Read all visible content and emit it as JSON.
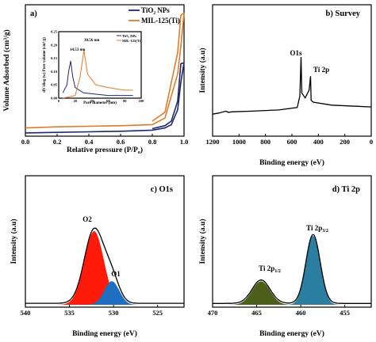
{
  "colors": {
    "tio2": "#1c2a6b",
    "mil": "#e07b2a",
    "o2": "#ff1a0a",
    "o1": "#1e6fc2",
    "ti12": "#4b5e1a",
    "ti32": "#2a7fa0"
  },
  "chart_data": [
    {
      "panel": "a)",
      "type": "line",
      "xlabel": "Relative pressure (P/P",
      "xlabel_sub": "o",
      "xlabel_end": ")",
      "ylabel": "Volume Adsorbed (cm³/g)",
      "xlim": [
        0,
        1.0
      ],
      "xticks": [
        "0.0",
        "0.2",
        "0.4",
        "0.6",
        "0.8",
        "1.0"
      ],
      "legend": [
        "TiO₂ NPs",
        "MIL-125(Ti)"
      ],
      "legend_position": "top-right",
      "series": [
        {
          "name": "TiO₂ NPs",
          "x": [
            0.0,
            0.2,
            0.4,
            0.6,
            0.8,
            0.88,
            0.92,
            0.96,
            0.98,
            1.0
          ],
          "y": [
            3,
            4,
            5,
            6,
            8,
            12,
            18,
            45,
            95,
            130
          ]
        },
        {
          "name": "MIL-125(Ti)",
          "x": [
            0.0,
            0.2,
            0.4,
            0.6,
            0.8,
            0.88,
            0.92,
            0.96,
            0.98,
            1.0
          ],
          "y": [
            12,
            14,
            15,
            16,
            18,
            30,
            70,
            110,
            160,
            220
          ]
        }
      ],
      "inset": {
        "type": "line",
        "xlabel": "Pore diameter (nm)",
        "ylabel": "dV/dlog (w) Pore volume (cm³/g)",
        "xticks": [
          "0",
          "20",
          "40",
          "60",
          "80",
          "100"
        ],
        "yticks": [
          "0.00",
          "0.05",
          "0.10",
          "0.15",
          "0.20",
          "0.25"
        ],
        "legend": [
          "TiO₂ NPs",
          "MIL-125(Ti)"
        ],
        "annotations": [
          "14.53 nm",
          "30.56 nm"
        ],
        "series": [
          {
            "name": "TiO₂ NPs",
            "x": [
              5,
              10,
              12,
              14.53,
              17,
              20,
              30,
              60,
              90
            ],
            "y": [
              0.02,
              0.05,
              0.1,
              0.14,
              0.08,
              0.04,
              0.02,
              0.01,
              0.01
            ]
          },
          {
            "name": "MIL-125(Ti)",
            "x": [
              5,
              20,
              26,
              30.56,
              35,
              45,
              60,
              80,
              90
            ],
            "y": [
              0.0,
              0.01,
              0.08,
              0.18,
              0.09,
              0.05,
              0.04,
              0.03,
              0.03
            ]
          }
        ]
      }
    },
    {
      "panel": "b)",
      "title": "Survey",
      "type": "line",
      "xlabel": "Binding energy (eV)",
      "ylabel": "Intensity (a.u)",
      "xlim": [
        1200,
        0
      ],
      "xticks": [
        "1200",
        "1000",
        "800",
        "600",
        "400",
        "200",
        "0"
      ],
      "annotations": [
        "O1s",
        "Ti 2p"
      ],
      "series": [
        {
          "name": "",
          "x": [
            1200,
            1150,
            1100,
            1080,
            1050,
            900,
            700,
            560,
            540,
            531,
            525,
            500,
            470,
            459,
            455,
            440,
            300,
            100,
            0
          ],
          "y": [
            0.05,
            0.07,
            0.1,
            0.08,
            0.09,
            0.1,
            0.12,
            0.16,
            0.35,
            1.0,
            0.4,
            0.32,
            0.45,
            0.68,
            0.28,
            0.25,
            0.2,
            0.18,
            0.17
          ]
        }
      ]
    },
    {
      "panel": "c)",
      "title": "O1s",
      "type": "area",
      "xlabel": "Binding energy (eV)",
      "ylabel": "Intensity (a.u)",
      "xlim": [
        540,
        522
      ],
      "xticks": [
        "540",
        "535",
        "530",
        "525"
      ],
      "annotations": [
        "O2",
        "O1"
      ],
      "series": [
        {
          "name": "O2",
          "center": 532.2,
          "fwhm": 2.6,
          "height": 1.0
        },
        {
          "name": "O1",
          "center": 530.2,
          "fwhm": 2.0,
          "height": 0.32
        }
      ],
      "baseline": 0.02
    },
    {
      "panel": "d)",
      "title": "Ti 2p",
      "type": "area",
      "xlabel": "Binding energy (eV)",
      "ylabel": "Intensity (a.u)",
      "xlim": [
        470,
        452
      ],
      "xticks": [
        "470",
        "465",
        "460",
        "455"
      ],
      "annotations": [
        "Ti 2p1/2",
        "Ti 2p3/2"
      ],
      "series": [
        {
          "name": "Ti 2p1/2",
          "center": 464.5,
          "fwhm": 2.4,
          "height": 0.34
        },
        {
          "name": "Ti 2p3/2",
          "center": 458.6,
          "fwhm": 1.9,
          "height": 1.0
        }
      ],
      "baseline": 0.02
    }
  ]
}
